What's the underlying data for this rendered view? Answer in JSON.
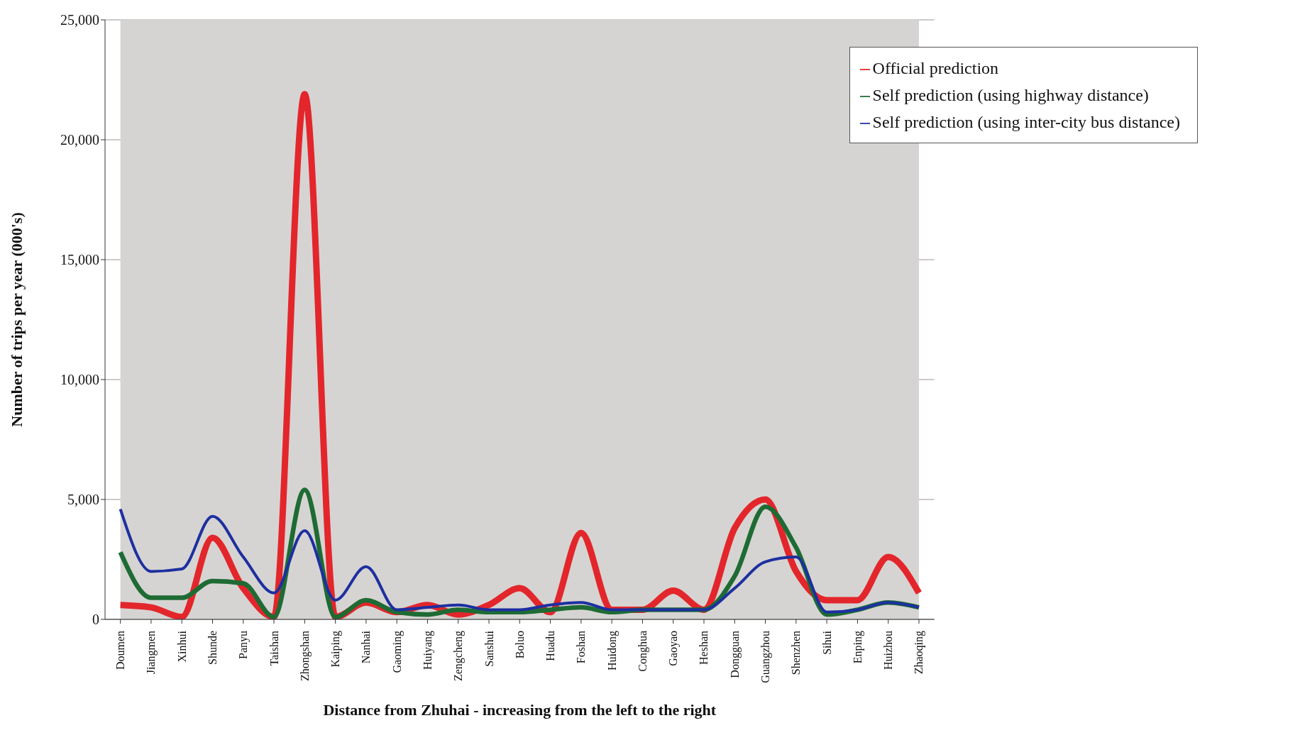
{
  "chart_data": {
    "type": "line",
    "xlabel": "Distance from Zhuhai - increasing from the left to the right",
    "ylabel": "Number of trips per year (000's)",
    "categories": [
      "Doumen",
      "Jiangmen",
      "Xinhui",
      "Shunde",
      "Panyu",
      "Taishan",
      "Zhongshan",
      "Kaiping",
      "Nanhai",
      "Gaoming",
      "Huiyang",
      "Zengcheng",
      "Sanshui",
      "Boluo",
      "Huadu",
      "Foshan",
      "Huidong",
      "Conghua",
      "Gaoyao",
      "Heshan",
      "Dongguan",
      "Guangzhou",
      "Shenzhen",
      "Sihui",
      "Enping",
      "Huizhou",
      "Zhaoqing"
    ],
    "series": [
      {
        "name": "Official prediction",
        "color": "#e3262b",
        "values": [
          600,
          500,
          100,
          3400,
          1300,
          100,
          21900,
          100,
          700,
          300,
          600,
          200,
          600,
          1300,
          300,
          3600,
          400,
          400,
          1200,
          400,
          3800,
          5000,
          2000,
          800,
          800,
          2600,
          1100
        ]
      },
      {
        "name": "Self prediction (using highway distance)",
        "color": "#1e6b34",
        "values": [
          2800,
          900,
          900,
          1600,
          1500,
          100,
          5400,
          100,
          800,
          300,
          200,
          400,
          300,
          300,
          400,
          500,
          300,
          400,
          400,
          400,
          1800,
          4700,
          3000,
          200,
          400,
          700,
          500
        ]
      },
      {
        "name": "Self prediction (using inter-city bus distance)",
        "color": "#1d2fa0",
        "values": [
          4600,
          2000,
          2100,
          4300,
          2600,
          1100,
          3700,
          800,
          2200,
          400,
          500,
          600,
          400,
          400,
          600,
          700,
          400,
          400,
          400,
          400,
          1300,
          2400,
          2600,
          300,
          400,
          700,
          500
        ]
      }
    ],
    "ylim": [
      0,
      25000
    ],
    "yticks": [
      {
        "value": 0,
        "label": "0"
      },
      {
        "value": 5000,
        "label": "5,000"
      },
      {
        "value": 10000,
        "label": "10,000"
      },
      {
        "value": 15000,
        "label": "15,000"
      },
      {
        "value": 20000,
        "label": "20,000"
      },
      {
        "value": 25000,
        "label": "25,000"
      }
    ],
    "grid": "y",
    "legend": "top right",
    "marker": "none",
    "line_style": "solid"
  }
}
